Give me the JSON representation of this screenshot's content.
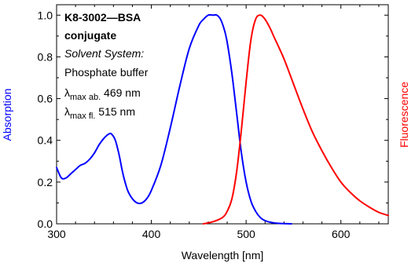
{
  "chart_data": {
    "type": "line",
    "xlabel": "Wavelength [nm]",
    "ylabel_left": "Absorption",
    "ylabel_right": "Fluorescence",
    "xlim": [
      300,
      650
    ],
    "ylim": [
      0,
      1.05
    ],
    "x_ticks": [
      300,
      400,
      500,
      600
    ],
    "y_ticks": [
      0.0,
      0.2,
      0.4,
      0.6,
      0.8,
      1.0
    ],
    "y_tick_labels": [
      "0.0",
      "0.2",
      "0.4",
      "0.6",
      "0.8",
      "1.0"
    ],
    "grid": false,
    "annotation": {
      "line1": "K8-3002—BSA",
      "line2": "conjugate",
      "line3": "Solvent System:",
      "line4": "Phosphate buffer",
      "abs_symbol": "λ",
      "abs_sub": "max ab.",
      "abs_value": " 469 nm",
      "fl_symbol": "λ",
      "fl_sub": "max fl.",
      "fl_value": " 515 nm"
    },
    "series": [
      {
        "color": "#0000ff",
        "x": [
          300,
          305,
          310,
          315,
          320,
          325,
          330,
          335,
          340,
          345,
          350,
          355,
          358,
          362,
          366,
          370,
          375,
          380,
          385,
          390,
          395,
          400,
          410,
          420,
          430,
          440,
          450,
          455,
          460,
          465,
          469,
          473,
          477,
          480,
          485,
          490,
          495,
          500,
          505,
          510,
          515,
          520,
          525,
          530,
          535,
          540,
          548
        ],
        "y": [
          0.27,
          0.22,
          0.22,
          0.24,
          0.26,
          0.28,
          0.29,
          0.31,
          0.34,
          0.38,
          0.41,
          0.43,
          0.43,
          0.4,
          0.33,
          0.24,
          0.16,
          0.12,
          0.1,
          0.1,
          0.12,
          0.16,
          0.28,
          0.46,
          0.66,
          0.84,
          0.95,
          0.98,
          1.0,
          1.0,
          1.0,
          0.98,
          0.93,
          0.87,
          0.72,
          0.53,
          0.34,
          0.2,
          0.11,
          0.06,
          0.03,
          0.015,
          0.008,
          0.004,
          0.002,
          0.001,
          0.0
        ]
      },
      {
        "color": "#ff0000",
        "x": [
          455,
          465,
          475,
          480,
          485,
          490,
          495,
          500,
          505,
          510,
          515,
          520,
          525,
          530,
          540,
          550,
          560,
          570,
          580,
          590,
          600,
          610,
          620,
          630,
          640,
          650
        ],
        "y": [
          0.0,
          0.01,
          0.03,
          0.06,
          0.12,
          0.25,
          0.45,
          0.68,
          0.88,
          0.98,
          1.0,
          0.98,
          0.94,
          0.89,
          0.79,
          0.67,
          0.55,
          0.44,
          0.35,
          0.27,
          0.2,
          0.15,
          0.11,
          0.08,
          0.055,
          0.04
        ]
      }
    ]
  }
}
